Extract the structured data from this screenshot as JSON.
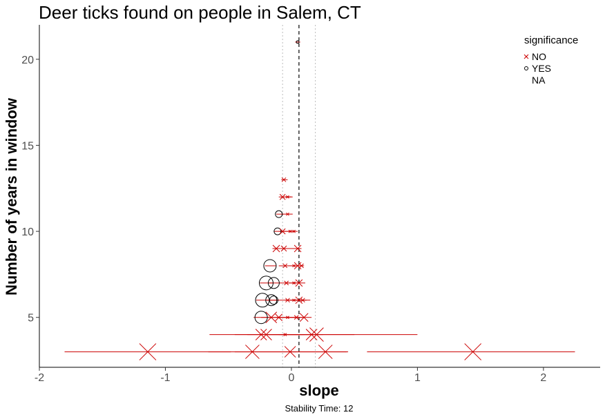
{
  "chart_data": {
    "type": "scatter",
    "title": "Deer ticks found on people in Salem, CT",
    "xlabel": "slope",
    "ylabel": "Number of years in window",
    "caption": "Stability Time: 12",
    "xlim": [
      -2,
      2.45
    ],
    "ylim": [
      2.1,
      22
    ],
    "x_ticks": [
      -2,
      -1,
      0,
      1,
      2
    ],
    "y_ticks": [
      5,
      10,
      15,
      20
    ],
    "grid": false,
    "reference_lines": {
      "dashed": 0.06,
      "dotted": [
        -0.07,
        0.19
      ]
    },
    "colors": {
      "NO": "#cc0000",
      "YES": "#000000",
      "interval": "#cc0000"
    },
    "legend": {
      "title": "significance",
      "position": "top-right",
      "entries": [
        {
          "label": "NO",
          "marker": "x"
        },
        {
          "label": "YES",
          "marker": "circle"
        },
        {
          "label": "NA",
          "marker": "none"
        }
      ]
    },
    "points": [
      {
        "y": 21,
        "x": 0.05,
        "lo": 0.03,
        "hi": 0.07,
        "sig": "YES",
        "size": 2
      },
      {
        "y": 13,
        "x": -0.06,
        "lo": -0.08,
        "hi": -0.03,
        "sig": "NO",
        "size": 3
      },
      {
        "y": 12,
        "x": -0.07,
        "lo": -0.1,
        "hi": 0.0,
        "sig": "NO",
        "size": 4
      },
      {
        "y": 12,
        "x": -0.03,
        "lo": -0.05,
        "hi": 0.01,
        "sig": "NO",
        "size": 2
      },
      {
        "y": 11,
        "x": -0.1,
        "lo": -0.12,
        "hi": -0.06,
        "sig": "YES",
        "size": 5
      },
      {
        "y": 11,
        "x": -0.03,
        "lo": -0.08,
        "hi": 0.01,
        "sig": "NO",
        "size": 2
      },
      {
        "y": 10,
        "x": -0.11,
        "lo": -0.14,
        "hi": -0.07,
        "sig": "YES",
        "size": 5
      },
      {
        "y": 10,
        "x": -0.07,
        "lo": -0.1,
        "hi": 0.02,
        "sig": "NO",
        "size": 4
      },
      {
        "y": 10,
        "x": -0.01,
        "lo": -0.06,
        "hi": 0.03,
        "sig": "NO",
        "size": 2
      },
      {
        "y": 10,
        "x": 0.02,
        "lo": -0.02,
        "hi": 0.05,
        "sig": "NO",
        "size": 2
      },
      {
        "y": 9,
        "x": -0.12,
        "lo": -0.15,
        "hi": 0.0,
        "sig": "NO",
        "size": 5
      },
      {
        "y": 9,
        "x": -0.06,
        "lo": -0.1,
        "hi": 0.02,
        "sig": "NO",
        "size": 4
      },
      {
        "y": 9,
        "x": 0.05,
        "lo": 0.01,
        "hi": 0.08,
        "sig": "NO",
        "size": 5
      },
      {
        "y": 8,
        "x": -0.17,
        "lo": -0.21,
        "hi": -0.12,
        "sig": "YES",
        "size": 9
      },
      {
        "y": 8,
        "x": -0.05,
        "lo": -0.1,
        "hi": 0.0,
        "sig": "NO",
        "size": 3
      },
      {
        "y": 8,
        "x": 0.02,
        "lo": -0.02,
        "hi": 0.06,
        "sig": "NO",
        "size": 2
      },
      {
        "y": 8,
        "x": 0.05,
        "lo": 0.0,
        "hi": 0.09,
        "sig": "NO",
        "size": 5
      },
      {
        "y": 8,
        "x": 0.08,
        "lo": 0.04,
        "hi": 0.1,
        "sig": "NO",
        "size": 3
      },
      {
        "y": 7,
        "x": -0.2,
        "lo": -0.25,
        "hi": -0.14,
        "sig": "YES",
        "size": 10
      },
      {
        "y": 7,
        "x": -0.14,
        "lo": -0.18,
        "hi": -0.09,
        "sig": "YES",
        "size": 8
      },
      {
        "y": 7,
        "x": -0.04,
        "lo": -0.1,
        "hi": 0.03,
        "sig": "NO",
        "size": 3
      },
      {
        "y": 7,
        "x": 0.02,
        "lo": -0.03,
        "hi": 0.06,
        "sig": "NO",
        "size": 2
      },
      {
        "y": 7,
        "x": 0.06,
        "lo": 0.01,
        "hi": 0.11,
        "sig": "NO",
        "size": 5
      },
      {
        "y": 6,
        "x": -0.23,
        "lo": -0.28,
        "hi": -0.18,
        "sig": "YES",
        "size": 10
      },
      {
        "y": 6,
        "x": -0.16,
        "lo": -0.2,
        "hi": -0.1,
        "sig": "YES",
        "size": 8
      },
      {
        "y": 6,
        "x": -0.14,
        "lo": -0.18,
        "hi": -0.1,
        "sig": "YES",
        "size": 6
      },
      {
        "y": 6,
        "x": -0.03,
        "lo": -0.1,
        "hi": 0.05,
        "sig": "NO",
        "size": 3
      },
      {
        "y": 6,
        "x": 0.02,
        "lo": -0.05,
        "hi": 0.1,
        "sig": "NO",
        "size": 2
      },
      {
        "y": 6,
        "x": 0.06,
        "lo": 0.0,
        "hi": 0.12,
        "sig": "NO",
        "size": 5
      },
      {
        "y": 6,
        "x": 0.09,
        "lo": 0.03,
        "hi": 0.15,
        "sig": "NO",
        "size": 3
      },
      {
        "y": 5,
        "x": -0.24,
        "lo": -0.3,
        "hi": -0.18,
        "sig": "YES",
        "size": 9
      },
      {
        "y": 5,
        "x": -0.16,
        "lo": -0.24,
        "hi": -0.05,
        "sig": "NO",
        "size": 8
      },
      {
        "y": 5,
        "x": -0.1,
        "lo": -0.18,
        "hi": 0.0,
        "sig": "NO",
        "size": 5
      },
      {
        "y": 5,
        "x": -0.03,
        "lo": -0.12,
        "hi": 0.05,
        "sig": "NO",
        "size": 2
      },
      {
        "y": 5,
        "x": 0.04,
        "lo": -0.05,
        "hi": 0.1,
        "sig": "NO",
        "size": 3
      },
      {
        "y": 5,
        "x": 0.1,
        "lo": 0.0,
        "hi": 0.16,
        "sig": "NO",
        "size": 6
      },
      {
        "y": 4,
        "x": -0.24,
        "lo": -0.65,
        "hi": 0.2,
        "sig": "NO",
        "size": 8
      },
      {
        "y": 4,
        "x": -0.2,
        "lo": -0.45,
        "hi": 0.1,
        "sig": "NO",
        "size": 8
      },
      {
        "y": 4,
        "x": -0.05,
        "lo": -0.35,
        "hi": 0.25,
        "sig": "NO",
        "size": 2
      },
      {
        "y": 4,
        "x": 0.16,
        "lo": -0.2,
        "hi": 0.5,
        "sig": "NO",
        "size": 8
      },
      {
        "y": 4,
        "x": 0.2,
        "lo": -0.1,
        "hi": 1.0,
        "sig": "NO",
        "size": 10
      },
      {
        "y": 3,
        "x": -1.14,
        "lo": -1.8,
        "hi": -0.48,
        "sig": "NO",
        "size": 12
      },
      {
        "y": 3,
        "x": -0.31,
        "lo": -0.66,
        "hi": 0.04,
        "sig": "NO",
        "size": 10
      },
      {
        "y": 3,
        "x": -0.01,
        "lo": -0.45,
        "hi": 0.44,
        "sig": "NO",
        "size": 8
      },
      {
        "y": 3,
        "x": 0.27,
        "lo": 0.0,
        "hi": 0.45,
        "sig": "NO",
        "size": 10
      },
      {
        "y": 3,
        "x": 1.44,
        "lo": 0.6,
        "hi": 2.25,
        "sig": "NO",
        "size": 12
      }
    ]
  }
}
